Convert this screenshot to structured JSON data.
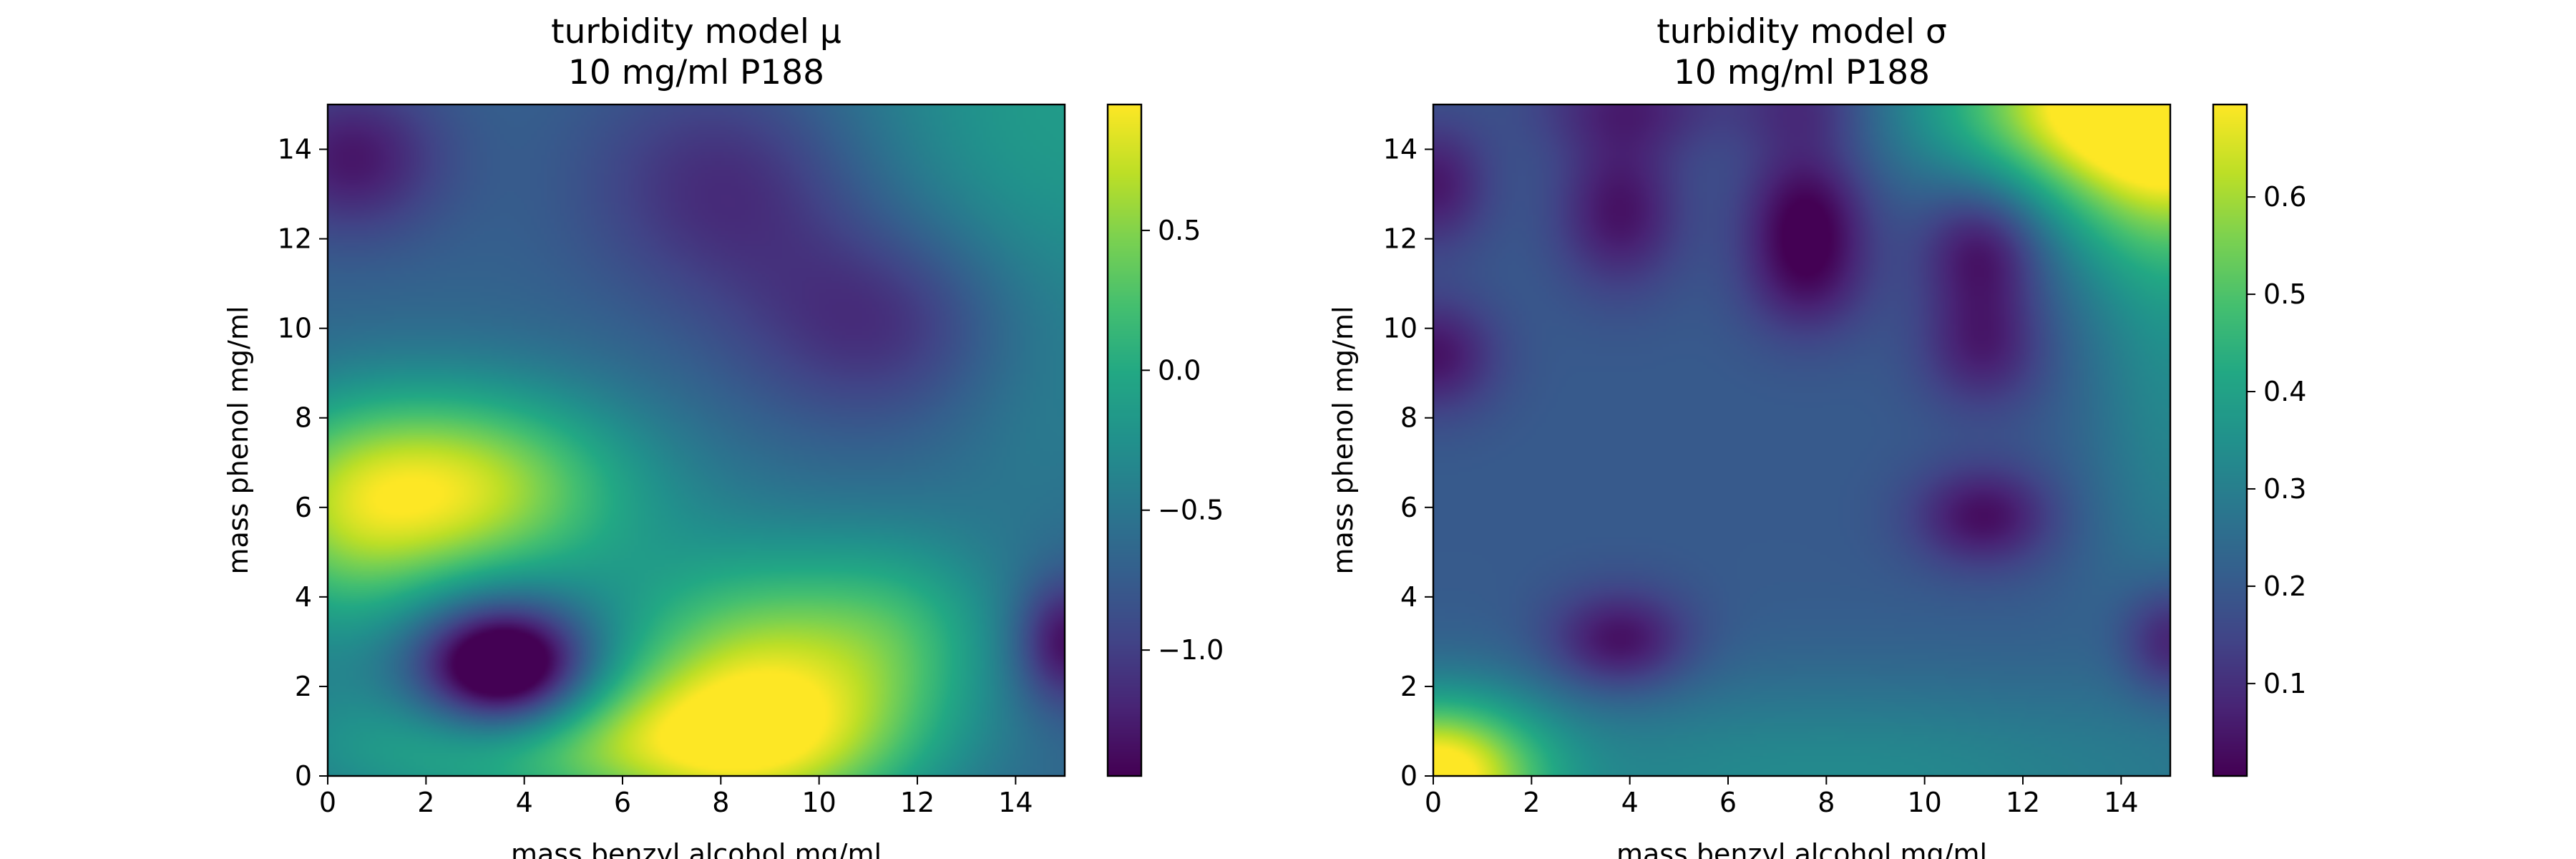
{
  "chart_data": [
    {
      "type": "heatmap",
      "title": [
        "turbidity model μ",
        "10 mg/ml P188"
      ],
      "xlabel": "mass benzyl alcohol mg/ml",
      "ylabel": "mass phenol mg/ml",
      "xlim": [
        0,
        15
      ],
      "ylim": [
        0,
        15
      ],
      "xticks": [
        "0",
        "2",
        "4",
        "6",
        "8",
        "10",
        "12",
        "14"
      ],
      "yticks": [
        "0",
        "2",
        "4",
        "6",
        "8",
        "10",
        "12",
        "14"
      ],
      "colormap": "viridis",
      "colorbar": {
        "range": [
          -1.45,
          0.95
        ],
        "ticks": [
          0.5,
          0.0,
          -0.5,
          -1.0
        ],
        "tick_labels": [
          "0.5",
          "0.0",
          "−0.5",
          "−1.0"
        ]
      },
      "base": -0.7,
      "features": [
        {
          "x": 2.4,
          "y": 6.4,
          "sx": 2.6,
          "sy": 1.6,
          "amp": 1.5
        },
        {
          "x": 0.2,
          "y": 5.0,
          "sx": 1.5,
          "sy": 2.0,
          "amp": 0.5
        },
        {
          "x": 8.8,
          "y": 1.8,
          "sx": 2.2,
          "sy": 2.1,
          "amp": 1.45
        },
        {
          "x": 5.2,
          "y": 0.6,
          "sx": 4.0,
          "sy": 1.1,
          "amp": 0.9
        },
        {
          "x": 3.6,
          "y": 2.4,
          "sx": 1.2,
          "sy": 1.0,
          "amp": -1.55
        },
        {
          "x": 11.8,
          "y": 3.2,
          "sx": 1.5,
          "sy": 1.6,
          "amp": 0.5
        },
        {
          "x": 15.0,
          "y": 3.0,
          "sx": 0.7,
          "sy": 1.0,
          "amp": -0.75
        },
        {
          "x": 0.5,
          "y": 13.8,
          "sx": 1.3,
          "sy": 1.2,
          "amp": -0.6
        },
        {
          "x": 8.2,
          "y": 13.2,
          "sx": 2.0,
          "sy": 1.8,
          "amp": -0.5
        },
        {
          "x": 11.3,
          "y": 10.2,
          "sx": 2.0,
          "sy": 1.6,
          "amp": -0.55
        },
        {
          "x": 15.0,
          "y": 15.0,
          "sx": 3.5,
          "sy": 4.0,
          "amp": 0.55
        },
        {
          "x": 14.5,
          "y": 8.0,
          "sx": 1.5,
          "sy": 2.5,
          "amp": 0.15
        }
      ]
    },
    {
      "type": "heatmap",
      "title": [
        "turbidity model σ",
        "10 mg/ml P188"
      ],
      "xlabel": "mass benzyl alcohol mg/ml",
      "ylabel": "mass phenol mg/ml",
      "xlim": [
        0,
        15
      ],
      "ylim": [
        0,
        15
      ],
      "xticks": [
        "0",
        "2",
        "4",
        "6",
        "8",
        "10",
        "12",
        "14"
      ],
      "yticks": [
        "0",
        "2",
        "4",
        "6",
        "8",
        "10",
        "12",
        "14"
      ],
      "colormap": "viridis",
      "colorbar": {
        "range": [
          0.005,
          0.695
        ],
        "ticks": [
          0.6,
          0.5,
          0.4,
          0.3,
          0.2,
          0.1
        ],
        "tick_labels": [
          "0.6",
          "0.5",
          "0.4",
          "0.3",
          "0.2",
          "0.1"
        ]
      },
      "base": 0.2,
      "features": [
        {
          "x": 0.0,
          "y": 0.0,
          "sx": 1.5,
          "sy": 1.2,
          "amp": 0.5
        },
        {
          "x": 8.0,
          "y": 0.0,
          "sx": 6.5,
          "sy": 1.6,
          "amp": 0.13
        },
        {
          "x": 15.0,
          "y": 15.0,
          "sx": 2.2,
          "sy": 2.2,
          "amp": 0.55
        },
        {
          "x": 12.5,
          "y": 15.0,
          "sx": 2.5,
          "sy": 1.2,
          "amp": 0.2
        },
        {
          "x": 15.0,
          "y": 9.0,
          "sx": 1.2,
          "sy": 4.0,
          "amp": 0.12
        },
        {
          "x": 3.8,
          "y": 3.0,
          "sx": 1.0,
          "sy": 0.8,
          "amp": -0.18
        },
        {
          "x": 11.2,
          "y": 5.8,
          "sx": 1.0,
          "sy": 0.8,
          "amp": -0.17
        },
        {
          "x": 15.0,
          "y": 3.0,
          "sx": 0.7,
          "sy": 0.9,
          "amp": -0.17
        },
        {
          "x": 0.0,
          "y": 9.4,
          "sx": 0.9,
          "sy": 0.9,
          "amp": -0.16
        },
        {
          "x": 0.0,
          "y": 13.2,
          "sx": 0.8,
          "sy": 1.0,
          "amp": -0.15
        },
        {
          "x": 3.8,
          "y": 12.6,
          "sx": 0.9,
          "sy": 1.2,
          "amp": -0.16
        },
        {
          "x": 4.0,
          "y": 15.0,
          "sx": 1.4,
          "sy": 0.8,
          "amp": -0.12
        },
        {
          "x": 7.6,
          "y": 12.8,
          "sx": 0.9,
          "sy": 1.0,
          "amp": -0.16
        },
        {
          "x": 7.6,
          "y": 11.2,
          "sx": 0.9,
          "sy": 1.0,
          "amp": -0.15
        },
        {
          "x": 7.6,
          "y": 15.0,
          "sx": 1.0,
          "sy": 0.8,
          "amp": -0.12
        },
        {
          "x": 11.2,
          "y": 11.8,
          "sx": 0.9,
          "sy": 1.0,
          "amp": -0.18
        },
        {
          "x": 11.2,
          "y": 9.6,
          "sx": 0.9,
          "sy": 1.0,
          "amp": -0.14
        }
      ]
    }
  ]
}
